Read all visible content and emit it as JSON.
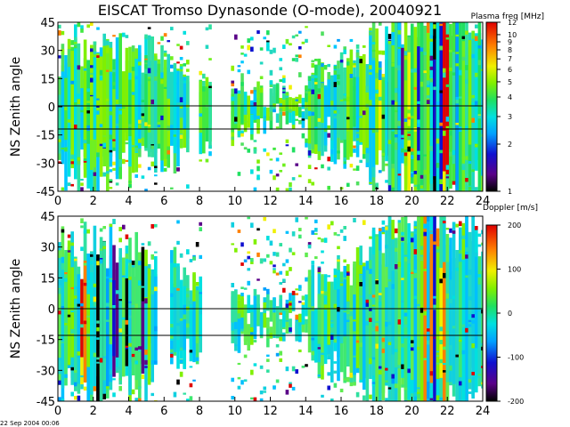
{
  "title": "EISCAT Tromso Dynasonde (O-mode),  20040921",
  "footer": "22 Sep 2004 00:06",
  "chart_data": [
    {
      "type": "heatmap",
      "panel": "top",
      "ylabel": "NS Zenith angle",
      "xlabel": "",
      "xlim": [
        0,
        24
      ],
      "ylim": [
        -45,
        45
      ],
      "x_ticks": [
        "0",
        "2",
        "4",
        "6",
        "8",
        "10",
        "12",
        "14",
        "16",
        "18",
        "20",
        "22",
        "24"
      ],
      "y_ticks": [
        "-45",
        "-30",
        "-15",
        "0",
        "15",
        "30",
        "45"
      ],
      "reference_lines_y": [
        0,
        -11
      ],
      "data_gaps_hours": [
        [
          7.3,
          7.9
        ],
        [
          8.6,
          9.7
        ]
      ],
      "colorbar": {
        "label": "Plasma freq [MHz]",
        "scale": "log",
        "range": [
          1,
          12
        ],
        "ticks": [
          "1",
          "2",
          "3",
          "4",
          "5",
          "6",
          "7",
          "8",
          "9",
          "10",
          "12"
        ]
      }
    },
    {
      "type": "heatmap",
      "panel": "bottom",
      "ylabel": "NS Zenith angle",
      "xlabel": "",
      "xlim": [
        0,
        24
      ],
      "ylim": [
        -45,
        45
      ],
      "x_ticks": [
        "0",
        "2",
        "4",
        "6",
        "8",
        "10",
        "12",
        "14",
        "16",
        "18",
        "20",
        "22",
        "24"
      ],
      "y_ticks": [
        "-45",
        "-30",
        "-15",
        "0",
        "15",
        "30",
        "45"
      ],
      "reference_lines_y": [
        0,
        -15
      ],
      "data_gaps_hours": [
        [
          5.6,
          6.2
        ],
        [
          8.0,
          9.6
        ]
      ],
      "colorbar": {
        "label": "Doppler [m/s]",
        "scale": "linear",
        "range": [
          -200,
          200
        ],
        "ticks": [
          "200",
          "100",
          "0",
          "-100",
          "-200"
        ]
      }
    }
  ]
}
